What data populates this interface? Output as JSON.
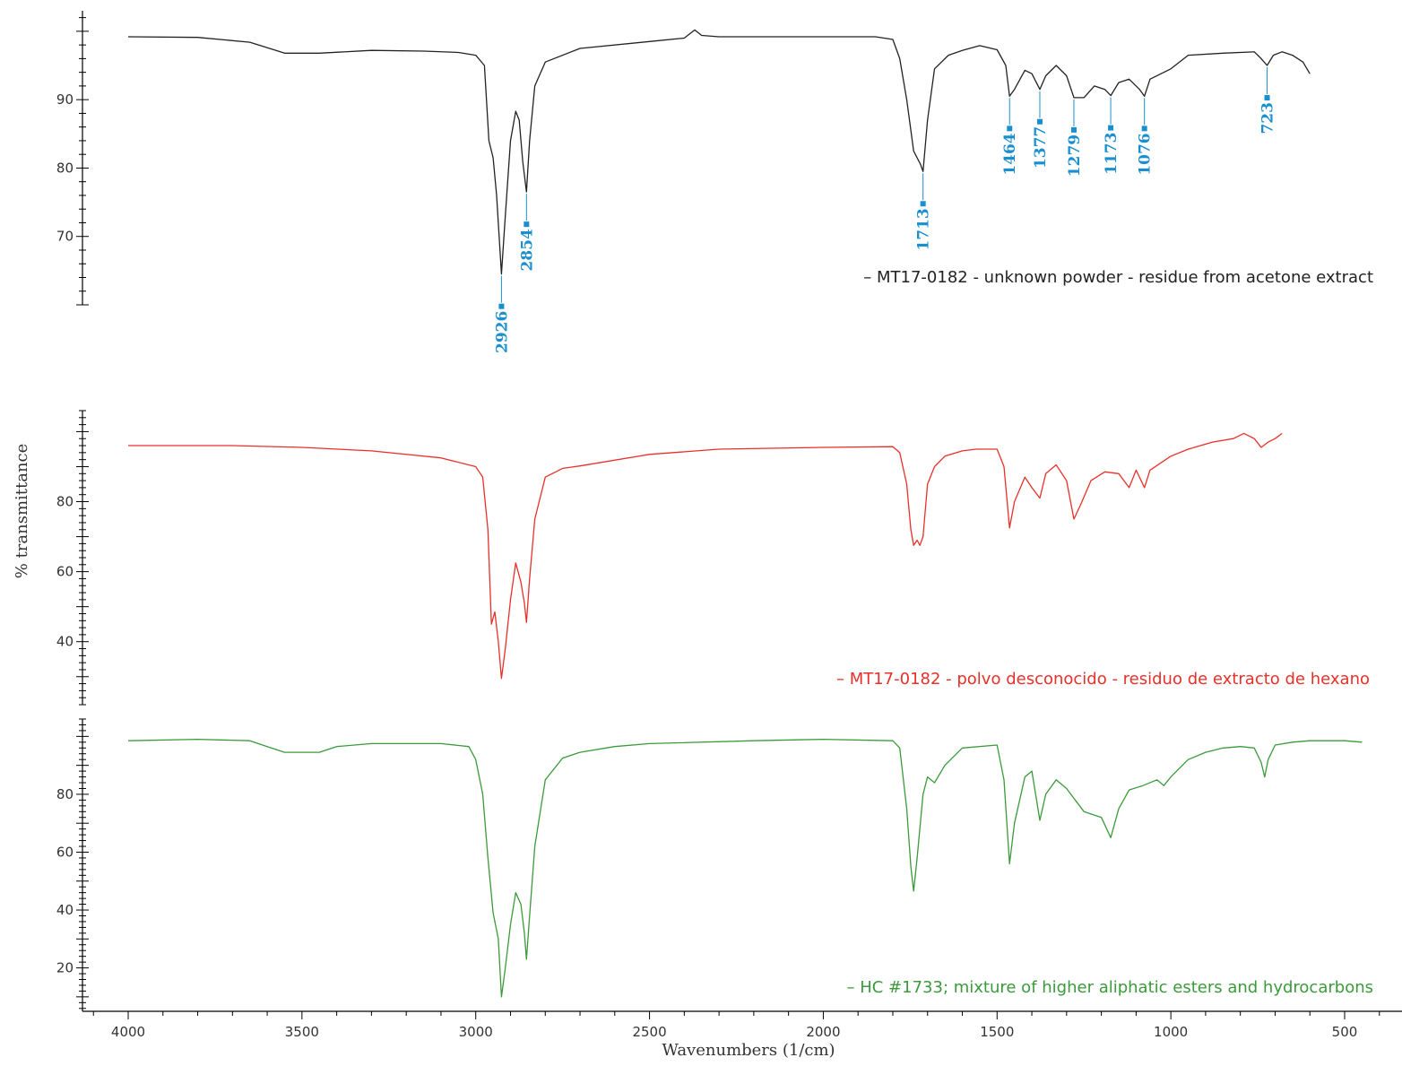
{
  "colors": {
    "panel_top": "#222222",
    "panel_mid": "#e8302a",
    "panel_bottom": "#3b9a3b",
    "peak_label": "#1a8fd0",
    "axis": "#000000"
  },
  "chart_data": {
    "type": "line",
    "xlabel": "Wavenumbers (1/cm)",
    "ylabel": "% transmittance",
    "xlim": [
      4000,
      400
    ],
    "x_ticks": [
      4000,
      3500,
      3000,
      2500,
      2000,
      1500,
      1000,
      500
    ],
    "x_tick_labels": [
      "4000",
      "3500",
      "3000",
      "2500",
      "2000",
      "1500",
      "1000",
      "500"
    ],
    "panels": [
      {
        "id": "top",
        "series_name": "– MT17-0182 - unknown powder - residue from acetone extract",
        "color": "#222222",
        "ylim": [
          60,
          103
        ],
        "y_ticks": [
          70,
          80,
          90
        ],
        "y_tick_labels": [
          "70",
          "80",
          "90"
        ],
        "points": [
          [
            4000,
            99.2
          ],
          [
            3800,
            99.1
          ],
          [
            3650,
            98.4
          ],
          [
            3550,
            96.8
          ],
          [
            3450,
            96.8
          ],
          [
            3300,
            97.2
          ],
          [
            3150,
            97.1
          ],
          [
            3050,
            96.9
          ],
          [
            3000,
            96.5
          ],
          [
            2975,
            95
          ],
          [
            2962,
            84
          ],
          [
            2950,
            81.5
          ],
          [
            2940,
            76
          ],
          [
            2926,
            64.5
          ],
          [
            2915,
            73
          ],
          [
            2900,
            84
          ],
          [
            2885,
            88.3
          ],
          [
            2875,
            87
          ],
          [
            2865,
            81
          ],
          [
            2854,
            76.5
          ],
          [
            2845,
            84
          ],
          [
            2830,
            92
          ],
          [
            2800,
            95.5
          ],
          [
            2700,
            97.5
          ],
          [
            2500,
            98.5
          ],
          [
            2400,
            99
          ],
          [
            2370,
            100.2
          ],
          [
            2350,
            99.4
          ],
          [
            2300,
            99.2
          ],
          [
            2100,
            99.2
          ],
          [
            1850,
            99.2
          ],
          [
            1800,
            98.8
          ],
          [
            1780,
            96
          ],
          [
            1760,
            90
          ],
          [
            1740,
            82.5
          ],
          [
            1730,
            81.5
          ],
          [
            1720,
            80.5
          ],
          [
            1713,
            79.5
          ],
          [
            1700,
            87
          ],
          [
            1680,
            94.5
          ],
          [
            1640,
            96.5
          ],
          [
            1600,
            97.2
          ],
          [
            1550,
            97.9
          ],
          [
            1500,
            97.3
          ],
          [
            1475,
            95
          ],
          [
            1464,
            90.5
          ],
          [
            1450,
            91.5
          ],
          [
            1420,
            94.3
          ],
          [
            1400,
            93.8
          ],
          [
            1377,
            91.5
          ],
          [
            1360,
            93.5
          ],
          [
            1330,
            95
          ],
          [
            1300,
            93.5
          ],
          [
            1279,
            90.3
          ],
          [
            1250,
            90.3
          ],
          [
            1220,
            92
          ],
          [
            1190,
            91.5
          ],
          [
            1173,
            90.6
          ],
          [
            1150,
            92.5
          ],
          [
            1120,
            93
          ],
          [
            1090,
            91.5
          ],
          [
            1076,
            90.5
          ],
          [
            1060,
            93
          ],
          [
            1000,
            94.5
          ],
          [
            950,
            96.5
          ],
          [
            850,
            96.8
          ],
          [
            760,
            97
          ],
          [
            740,
            96
          ],
          [
            723,
            95
          ],
          [
            705,
            96.5
          ],
          [
            680,
            97
          ],
          [
            650,
            96.5
          ],
          [
            620,
            95.5
          ],
          [
            600,
            93.8
          ]
        ],
        "peaks": [
          {
            "x": 2926,
            "label": "2926",
            "side": "below"
          },
          {
            "x": 2854,
            "label": "2854",
            "side": "below"
          },
          {
            "x": 1713,
            "label": "1713",
            "side": "below"
          },
          {
            "x": 1464,
            "label": "1464",
            "side": "below"
          },
          {
            "x": 1377,
            "label": "1377",
            "side": "below"
          },
          {
            "x": 1279,
            "label": "1279",
            "side": "below"
          },
          {
            "x": 1173,
            "label": "1173",
            "side": "below"
          },
          {
            "x": 1076,
            "label": "1076",
            "side": "below"
          },
          {
            "x": 723,
            "label": "723",
            "side": "below"
          }
        ]
      },
      {
        "id": "middle",
        "series_name": "– MT17-0182 - polvo desconocido - residuo de extracto de hexano",
        "color": "#e8302a",
        "ylim": [
          22,
          106
        ],
        "y_ticks": [
          40,
          60,
          80
        ],
        "y_tick_labels": [
          "40",
          "60",
          "80"
        ],
        "points": [
          [
            4000,
            96
          ],
          [
            3700,
            96
          ],
          [
            3500,
            95.5
          ],
          [
            3300,
            94.5
          ],
          [
            3100,
            92.5
          ],
          [
            3000,
            90
          ],
          [
            2980,
            87
          ],
          [
            2965,
            72
          ],
          [
            2955,
            45
          ],
          [
            2945,
            48.5
          ],
          [
            2935,
            40
          ],
          [
            2926,
            29.5
          ],
          [
            2915,
            38
          ],
          [
            2900,
            52
          ],
          [
            2885,
            62.5
          ],
          [
            2870,
            57
          ],
          [
            2860,
            51
          ],
          [
            2854,
            45.5
          ],
          [
            2845,
            58
          ],
          [
            2830,
            75
          ],
          [
            2800,
            87
          ],
          [
            2750,
            89.5
          ],
          [
            2700,
            90.2
          ],
          [
            2500,
            93.5
          ],
          [
            2300,
            95
          ],
          [
            2000,
            95.5
          ],
          [
            1800,
            95.7
          ],
          [
            1780,
            94
          ],
          [
            1760,
            85
          ],
          [
            1748,
            72
          ],
          [
            1740,
            67.5
          ],
          [
            1730,
            69
          ],
          [
            1722,
            67.5
          ],
          [
            1713,
            70
          ],
          [
            1700,
            85
          ],
          [
            1680,
            90
          ],
          [
            1650,
            93
          ],
          [
            1600,
            94.5
          ],
          [
            1560,
            95
          ],
          [
            1500,
            95
          ],
          [
            1480,
            90
          ],
          [
            1464,
            72.5
          ],
          [
            1450,
            80
          ],
          [
            1420,
            87
          ],
          [
            1400,
            84
          ],
          [
            1377,
            81
          ],
          [
            1360,
            88
          ],
          [
            1330,
            90.5
          ],
          [
            1300,
            86
          ],
          [
            1279,
            75
          ],
          [
            1260,
            79
          ],
          [
            1230,
            86
          ],
          [
            1190,
            88.5
          ],
          [
            1150,
            88
          ],
          [
            1120,
            84
          ],
          [
            1100,
            89
          ],
          [
            1076,
            84
          ],
          [
            1060,
            89
          ],
          [
            1000,
            93
          ],
          [
            950,
            95
          ],
          [
            880,
            97
          ],
          [
            820,
            98
          ],
          [
            790,
            99.5
          ],
          [
            760,
            98
          ],
          [
            740,
            95.5
          ],
          [
            720,
            97
          ],
          [
            700,
            98
          ],
          [
            680,
            99.5
          ]
        ]
      },
      {
        "id": "bottom",
        "series_name": "– HC #1733; mixture of higher aliphatic esters and hydrocarbons",
        "color": "#3b9a3b",
        "ylim": [
          5,
          106
        ],
        "y_ticks": [
          20,
          40,
          60,
          80
        ],
        "y_tick_labels": [
          "20",
          "40",
          "60",
          "80"
        ],
        "points": [
          [
            4000,
            98.5
          ],
          [
            3800,
            99
          ],
          [
            3650,
            98.5
          ],
          [
            3600,
            96.5
          ],
          [
            3550,
            94.5
          ],
          [
            3450,
            94.5
          ],
          [
            3400,
            96.5
          ],
          [
            3300,
            97.5
          ],
          [
            3100,
            97.5
          ],
          [
            3020,
            96.5
          ],
          [
            3000,
            92
          ],
          [
            2980,
            80
          ],
          [
            2965,
            58
          ],
          [
            2950,
            39
          ],
          [
            2935,
            30
          ],
          [
            2926,
            10
          ],
          [
            2915,
            20
          ],
          [
            2900,
            35
          ],
          [
            2885,
            46
          ],
          [
            2870,
            42
          ],
          [
            2860,
            32
          ],
          [
            2854,
            23
          ],
          [
            2845,
            38
          ],
          [
            2830,
            62
          ],
          [
            2800,
            85
          ],
          [
            2750,
            92.5
          ],
          [
            2700,
            94.5
          ],
          [
            2600,
            96.5
          ],
          [
            2500,
            97.5
          ],
          [
            2200,
            98.5
          ],
          [
            2000,
            99
          ],
          [
            1800,
            98.5
          ],
          [
            1780,
            96
          ],
          [
            1760,
            75
          ],
          [
            1748,
            55
          ],
          [
            1740,
            46.5
          ],
          [
            1730,
            58
          ],
          [
            1713,
            80
          ],
          [
            1700,
            86
          ],
          [
            1680,
            84
          ],
          [
            1650,
            90
          ],
          [
            1600,
            96
          ],
          [
            1500,
            97
          ],
          [
            1480,
            85
          ],
          [
            1464,
            56
          ],
          [
            1450,
            70
          ],
          [
            1420,
            86
          ],
          [
            1400,
            88
          ],
          [
            1377,
            71
          ],
          [
            1360,
            80
          ],
          [
            1330,
            85
          ],
          [
            1300,
            82
          ],
          [
            1250,
            74
          ],
          [
            1200,
            72
          ],
          [
            1173,
            65
          ],
          [
            1150,
            75
          ],
          [
            1120,
            81.5
          ],
          [
            1080,
            83
          ],
          [
            1040,
            85
          ],
          [
            1020,
            83
          ],
          [
            1000,
            86
          ],
          [
            950,
            92
          ],
          [
            900,
            94.5
          ],
          [
            850,
            96
          ],
          [
            800,
            96.5
          ],
          [
            760,
            96
          ],
          [
            740,
            91
          ],
          [
            730,
            86
          ],
          [
            720,
            92
          ],
          [
            700,
            97
          ],
          [
            650,
            98
          ],
          [
            600,
            98.5
          ],
          [
            500,
            98.5
          ],
          [
            450,
            98
          ]
        ]
      }
    ]
  }
}
